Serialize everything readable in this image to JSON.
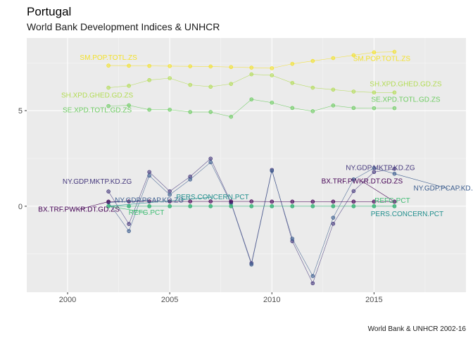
{
  "title": "Portugal",
  "subtitle": "World Bank Development Indices & UNHCR",
  "caption": "World Bank & UNHCR 2002-16",
  "chart_data": {
    "type": "line",
    "xlim": [
      1998,
      2019.5
    ],
    "ylim": [
      -4.5,
      8.8
    ],
    "x_ticks": [
      2000,
      2005,
      2010,
      2015
    ],
    "x_tick_labels": [
      "2000",
      "2005",
      "2010",
      "2015"
    ],
    "y_ticks": [
      0,
      5
    ],
    "y_tick_labels": [
      "0",
      "5"
    ],
    "grid": true,
    "x": [
      2002,
      2003,
      2004,
      2005,
      2006,
      2007,
      2008,
      2009,
      2010,
      2011,
      2012,
      2013,
      2014,
      2015,
      2016
    ],
    "series": [
      {
        "name": "SM.POP.TOTL.ZS",
        "color": "#f3e12a",
        "values": [
          7.36,
          7.35,
          7.34,
          7.33,
          7.32,
          7.31,
          7.28,
          7.25,
          7.22,
          7.45,
          7.6,
          7.75,
          7.9,
          8.05,
          8.08
        ]
      },
      {
        "name": "SH.XPD.GHED.GD.ZS",
        "color": "#b3dc55",
        "values": [
          6.2,
          6.3,
          6.6,
          6.7,
          6.35,
          6.25,
          6.4,
          6.9,
          6.85,
          6.45,
          6.2,
          6.1,
          6.0,
          5.95,
          5.95
        ]
      },
      {
        "name": "SE.XPD.TOTL.GD.ZS",
        "color": "#6ecc63",
        "values": [
          5.24,
          5.28,
          5.05,
          5.05,
          4.93,
          4.93,
          4.68,
          5.59,
          5.42,
          5.14,
          4.97,
          5.27,
          5.14,
          5.13,
          5.13
        ]
      },
      {
        "name": "NY.GDP.MKTP.KD.ZG",
        "color": "#473a7e",
        "values": [
          0.77,
          -0.93,
          1.79,
          0.78,
          1.55,
          2.49,
          0.2,
          -2.98,
          1.9,
          -1.83,
          -4.03,
          -0.92,
          0.79,
          1.79,
          1.96
        ]
      },
      {
        "name": "NY.GDP.PCAP.KD.ZG",
        "color": "#3d5e8f",
        "values": [
          0.2,
          -1.3,
          1.6,
          0.6,
          1.4,
          2.3,
          0.15,
          -3.05,
          1.85,
          -1.7,
          -3.65,
          -0.6,
          1.4,
          2.0,
          1.7
        ]
      },
      {
        "name": "BX.TRF.PWKR.DT.GD.ZS",
        "color": "#440154",
        "values": [
          0.24,
          0.25,
          0.25,
          0.25,
          0.25,
          0.25,
          0.25,
          0.25,
          0.24,
          0.24,
          0.24,
          0.24,
          0.24,
          0.24,
          0.24
        ]
      },
      {
        "name": "PERS.CONCERN.PCT",
        "color": "#218f8d",
        "values": [
          0.0,
          0.0,
          0.0,
          0.0,
          0.0,
          0.0,
          0.0,
          0.0,
          0.0,
          0.0,
          0.0,
          0.0,
          0.0,
          0.0,
          0.0
        ]
      },
      {
        "name": "REFG.PCT",
        "color": "#3fbc73",
        "values": [
          0.0,
          0.0,
          0.0,
          0.0,
          0.0,
          0.0,
          0.0,
          0.0,
          0.0,
          0.0,
          0.0,
          0.0,
          0.0,
          0.0,
          0.0
        ]
      }
    ],
    "labels": [
      {
        "series": "SM.POP.TOTL.ZS",
        "at_year": 2002
      },
      {
        "series": "SM.POP.TOTL.ZS",
        "at_year": 2016
      },
      {
        "series": "SH.XPD.GHED.GD.ZS",
        "at_year": 2002
      },
      {
        "series": "SH.XPD.GHED.GD.ZS",
        "at_year": 2016
      },
      {
        "series": "SE.XPD.TOTL.GD.ZS",
        "at_year": 2002
      },
      {
        "series": "SE.XPD.TOTL.GD.ZS",
        "at_year": 2016
      },
      {
        "series": "NY.GDP.MKTP.KD.ZG",
        "at_year": 2002
      },
      {
        "series": "NY.GDP.MKTP.KD.ZG",
        "at_year": 2016
      },
      {
        "series": "NY.GDP.PCAP.KD.ZG",
        "at_year": 2002
      },
      {
        "series": "NY.GDP.PCAP.KD.ZG",
        "at_year": 2016
      },
      {
        "series": "BX.TRF.PWKR.DT.GD.ZS",
        "at_year": 2002
      },
      {
        "series": "BX.TRF.PWKR.DT.GD.ZS",
        "at_year": 2016
      },
      {
        "series": "PERS.CONCERN.PCT",
        "at_year": 2002
      },
      {
        "series": "PERS.CONCERN.PCT",
        "at_year": 2016
      },
      {
        "series": "REFG.PCT",
        "at_year": 2002
      },
      {
        "series": "REFG.PCT",
        "at_year": 2016
      }
    ]
  }
}
